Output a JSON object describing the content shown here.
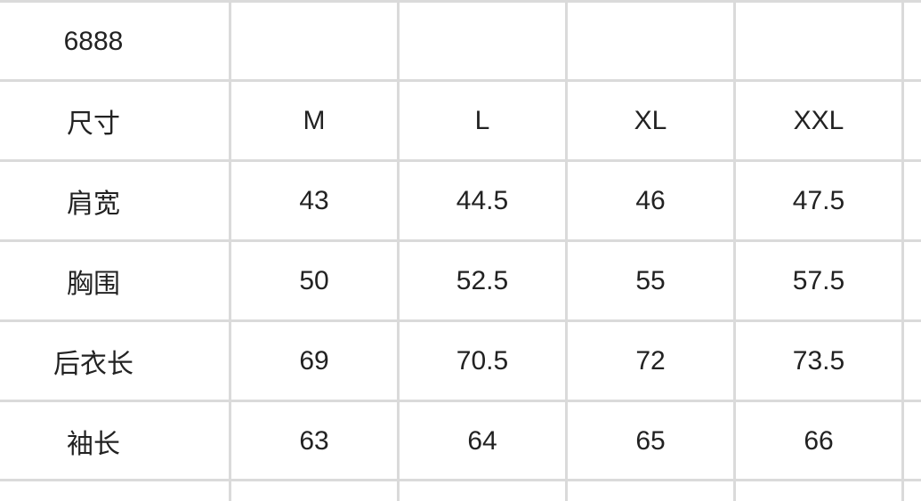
{
  "title": "6888",
  "header": {
    "label": "尺寸",
    "sizes": [
      "M",
      "L",
      "XL",
      "XXL"
    ]
  },
  "rows": [
    {
      "label": "肩宽",
      "values": [
        "43",
        "44.5",
        "46",
        "47.5"
      ]
    },
    {
      "label": "胸围",
      "values": [
        "50",
        "52.5",
        "55",
        "57.5"
      ]
    },
    {
      "label": "后衣长",
      "values": [
        "69",
        "70.5",
        "72",
        "73.5"
      ]
    },
    {
      "label": "袖长",
      "values": [
        "63",
        "64",
        "65",
        "66"
      ]
    }
  ],
  "colors": {
    "grid": "#dadada",
    "text": "#222222"
  }
}
